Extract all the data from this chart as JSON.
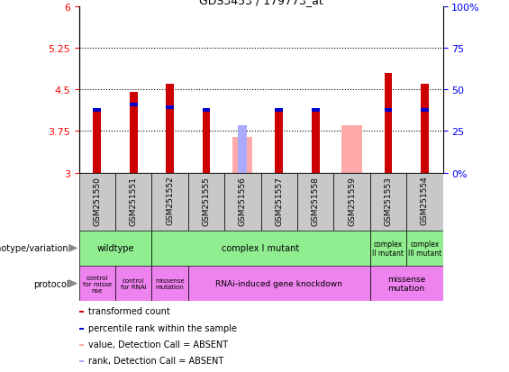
{
  "title": "GDS3453 / 179773_at",
  "samples": [
    "GSM251550",
    "GSM251551",
    "GSM251552",
    "GSM251555",
    "GSM251556",
    "GSM251557",
    "GSM251558",
    "GSM251559",
    "GSM251553",
    "GSM251554"
  ],
  "red_values": [
    4.1,
    4.45,
    4.6,
    4.1,
    0,
    4.1,
    4.1,
    0,
    4.8,
    4.6
  ],
  "blue_values": [
    4.1,
    4.2,
    4.15,
    4.1,
    0,
    4.1,
    4.1,
    0,
    4.1,
    4.1
  ],
  "pink_values": [
    0,
    0,
    0,
    0,
    3.65,
    0,
    0,
    3.85,
    0,
    0
  ],
  "light_blue_values": [
    0,
    0,
    0,
    0,
    3.85,
    0,
    0,
    0,
    0,
    0
  ],
  "ymin": 3.0,
  "ymax": 6.0,
  "yticks": [
    3.0,
    3.75,
    4.5,
    5.25,
    6.0
  ],
  "ytick_labels": [
    "3",
    "3.75",
    "4.5",
    "5.25",
    "6"
  ],
  "y2ticks": [
    0,
    25,
    50,
    75,
    100
  ],
  "y2tick_labels": [
    "0%",
    "25",
    "50",
    "75",
    "100%"
  ],
  "hlines": [
    3.75,
    4.5,
    5.25
  ],
  "bar_color_red": "#cc0000",
  "bar_color_blue": "#0000cc",
  "bar_color_pink": "#ffaaaa",
  "bar_color_light_blue": "#aaaaff",
  "color_green": "#90ee90",
  "color_purple": "#ee82ee",
  "color_gray": "#c8c8c8",
  "legend_items": [
    [
      "#cc0000",
      "transformed count"
    ],
    [
      "#0000cc",
      "percentile rank within the sample"
    ],
    [
      "#ffaaaa",
      "value, Detection Call = ABSENT"
    ],
    [
      "#aaaaff",
      "rank, Detection Call = ABSENT"
    ]
  ]
}
